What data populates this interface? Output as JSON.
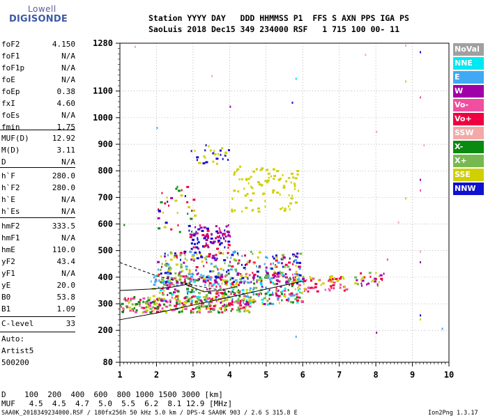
{
  "logo": {
    "top": "Lowell",
    "main": "DIGISONDE"
  },
  "header": {
    "labels": "Station YYYY DAY   DDD HHMMSS P1  FFS S AXN PPS IGA PS",
    "values": "SaoLuis 2018 Dec15 349 234000 RSF   1 715 100 00- 11"
  },
  "params_group1": [
    {
      "label": "foF2",
      "value": "4.150"
    },
    {
      "label": "foF1",
      "value": "N/A"
    },
    {
      "label": "foF1p",
      "value": "N/A"
    },
    {
      "label": "foE",
      "value": "N/A"
    },
    {
      "label": "foEp",
      "value": "0.38"
    },
    {
      "label": "fxI",
      "value": "4.60"
    },
    {
      "label": "foEs",
      "value": "N/A"
    },
    {
      "label": "fmin",
      "value": "1.75"
    }
  ],
  "params_group2": [
    {
      "label": "MUF(D)",
      "value": "12.92"
    },
    {
      "label": "M(D)",
      "value": "3.11"
    },
    {
      "label": "D",
      "value": "N/A"
    }
  ],
  "params_group3": [
    {
      "label": "h`F",
      "value": "280.0"
    },
    {
      "label": "h`F2",
      "value": "280.0"
    },
    {
      "label": "h`E",
      "value": "N/A"
    },
    {
      "label": "h`Es",
      "value": "N/A"
    }
  ],
  "params_group4": [
    {
      "label": "hmF2",
      "value": "333.5"
    },
    {
      "label": "hmF1",
      "value": "N/A"
    },
    {
      "label": "hmE",
      "value": "110.0"
    },
    {
      "label": "yF2",
      "value": "43.4"
    },
    {
      "label": "yF1",
      "value": "N/A"
    },
    {
      "label": "yE",
      "value": "20.0"
    },
    {
      "label": "B0",
      "value": "53.8"
    },
    {
      "label": "B1",
      "value": "1.09"
    }
  ],
  "params_group5": [
    {
      "label": "C-level",
      "value": "33"
    }
  ],
  "autoscaling": {
    "line1": "Auto:",
    "line2": "Artist5",
    "line3": "500200"
  },
  "legend": [
    {
      "label": "NoVal",
      "color": "#a0a0a0"
    },
    {
      "label": "NNE",
      "color": "#00e8f0"
    },
    {
      "label": "E",
      "color": "#3fa9f5"
    },
    {
      "label": "W",
      "color": "#a000a8"
    },
    {
      "label": "Vo-",
      "color": "#f04fa0"
    },
    {
      "label": "Vo+",
      "color": "#f00040"
    },
    {
      "label": "SSW",
      "color": "#f4a8a8"
    },
    {
      "label": "X-",
      "color": "#0a8a10"
    },
    {
      "label": "X+",
      "color": "#78b850"
    },
    {
      "label": "SSE",
      "color": "#d0d000"
    },
    {
      "label": "NNW",
      "color": "#1010d0"
    }
  ],
  "bottom": {
    "d_row": "D    100  200  400  600  800 1000 1500 3000 [km]",
    "muf_row": "MUF   4.5  4.5  4.7  5.0  5.5  6.2  8.1 12.9 [MHz]"
  },
  "footer": {
    "left": "SAA0K_2018349234000.RSF / 180fx256h 50 kHz 5.0 km / DPS-4 SAA0K 903 / 2.6 S 315.8 E",
    "right": "Ion2Png 1.3.17"
  },
  "chart_data": {
    "type": "scatter",
    "xlim": [
      1,
      10
    ],
    "ylim": [
      80,
      1280
    ],
    "x_ticks": [
      "1",
      "2",
      "3",
      "4",
      "5",
      "6",
      "7",
      "8",
      "9",
      "10"
    ],
    "y_ticks": [
      {
        "value": 80,
        "label": "80"
      },
      {
        "value": 200,
        "label": "200"
      },
      {
        "value": 300,
        "label": "300"
      },
      {
        "value": 400,
        "label": "400"
      },
      {
        "value": 500,
        "label": "500"
      },
      {
        "value": 600,
        "label": "600"
      },
      {
        "value": 700,
        "label": "700"
      },
      {
        "value": 800,
        "label": "800"
      },
      {
        "value": 900,
        "label": "900"
      },
      {
        "value": 1000,
        "label": "1000"
      },
      {
        "value": 1100,
        "label": "1100"
      },
      {
        "value": 1280,
        "label": "1280"
      }
    ],
    "grid": true,
    "clusters": [
      {
        "fmin": 1.0,
        "fmax": 4.6,
        "hmin": 270,
        "hmax": 330,
        "n": 260,
        "colors": [
          "#f00040",
          "#f04fa0",
          "#78b850",
          "#d0d000",
          "#0a8a10"
        ]
      },
      {
        "fmin": 1.8,
        "fmax": 6.0,
        "hmin": 300,
        "hmax": 420,
        "n": 420,
        "colors": [
          "#f00040",
          "#f04fa0",
          "#d0d000",
          "#78b850",
          "#0a8a10",
          "#a000a8",
          "#00e8f0",
          "#3fa9f5"
        ]
      },
      {
        "fmin": 2.0,
        "fmax": 6.0,
        "hmin": 380,
        "hmax": 500,
        "n": 280,
        "colors": [
          "#d0d000",
          "#78b850",
          "#f00040",
          "#1010d0",
          "#a000a8",
          "#3fa9f5"
        ]
      },
      {
        "fmin": 6.0,
        "fmax": 7.2,
        "hmin": 350,
        "hmax": 410,
        "n": 60,
        "colors": [
          "#f00040",
          "#f04fa0",
          "#d0d000"
        ]
      },
      {
        "fmin": 7.4,
        "fmax": 8.2,
        "hmin": 370,
        "hmax": 420,
        "n": 30,
        "colors": [
          "#d0d000",
          "#78b850",
          "#f00040",
          "#a000a8"
        ]
      },
      {
        "fmin": 2.9,
        "fmax": 4.0,
        "hmin": 510,
        "hmax": 600,
        "n": 90,
        "colors": [
          "#a000a8",
          "#1010d0",
          "#f00040"
        ]
      },
      {
        "fmin": 4.0,
        "fmax": 5.9,
        "hmin": 650,
        "hmax": 820,
        "n": 90,
        "colors": [
          "#d0d000"
        ]
      },
      {
        "fmin": 2.9,
        "fmax": 4.0,
        "hmin": 830,
        "hmax": 900,
        "n": 30,
        "colors": [
          "#d0d000",
          "#1010d0"
        ]
      },
      {
        "fmin": 2.0,
        "fmax": 3.1,
        "hmin": 560,
        "hmax": 750,
        "n": 40,
        "colors": [
          "#0a8a10",
          "#f00040",
          "#1010d0",
          "#d0d000",
          "#a000a8"
        ]
      }
    ],
    "sparse_points": [
      {
        "x": 1.4,
        "y": 1270,
        "color": "#f4a8a8"
      },
      {
        "x": 5.8,
        "y": 1150,
        "color": "#00e8f0"
      },
      {
        "x": 5.7,
        "y": 1060,
        "color": "#1010d0"
      },
      {
        "x": 4.0,
        "y": 1045,
        "color": "#a000a8"
      },
      {
        "x": 2.0,
        "y": 965,
        "color": "#3fa9f5"
      },
      {
        "x": 3.5,
        "y": 1160,
        "color": "#f4a8a8"
      },
      {
        "x": 8.0,
        "y": 950,
        "color": "#f4a8a8"
      },
      {
        "x": 8.8,
        "y": 1275,
        "color": "#f4a8a8"
      },
      {
        "x": 8.8,
        "y": 1140,
        "color": "#d0d000"
      },
      {
        "x": 9.2,
        "y": 1250,
        "color": "#1010d0"
      },
      {
        "x": 9.2,
        "y": 1080,
        "color": "#f04fa0"
      },
      {
        "x": 9.2,
        "y": 770,
        "color": "#a000a8"
      },
      {
        "x": 9.2,
        "y": 730,
        "color": "#f04fa0"
      },
      {
        "x": 9.2,
        "y": 500,
        "color": "#f4a8a8"
      },
      {
        "x": 9.2,
        "y": 460,
        "color": "#a000a8"
      },
      {
        "x": 9.2,
        "y": 260,
        "color": "#1010d0"
      },
      {
        "x": 9.2,
        "y": 245,
        "color": "#d0d000"
      },
      {
        "x": 9.8,
        "y": 210,
        "color": "#3fa9f5"
      },
      {
        "x": 5.8,
        "y": 180,
        "color": "#3fa9f5"
      },
      {
        "x": 8.0,
        "y": 195,
        "color": "#a000a8"
      },
      {
        "x": 1.1,
        "y": 600,
        "color": "#0a8a10"
      },
      {
        "x": 8.3,
        "y": 470,
        "color": "#f04fa0"
      },
      {
        "x": 8.6,
        "y": 610,
        "color": "#f4a8a8"
      },
      {
        "x": 9.3,
        "y": 900,
        "color": "#f4a8a8"
      },
      {
        "x": 7.7,
        "y": 1240,
        "color": "#f4a8a8"
      },
      {
        "x": 8.8,
        "y": 700,
        "color": "#d0d000"
      }
    ],
    "lines": [
      {
        "style": "solid",
        "points": [
          [
            1,
            240
          ],
          [
            2,
            265
          ],
          [
            3,
            295
          ],
          [
            4,
            325
          ],
          [
            5,
            355
          ],
          [
            6,
            385
          ]
        ]
      },
      {
        "style": "solid",
        "points": [
          [
            1,
            350
          ],
          [
            1.8,
            355
          ],
          [
            2.4,
            362
          ],
          [
            2.8,
            372
          ],
          [
            3.3,
            345
          ],
          [
            3.8,
            352
          ],
          [
            4.2,
            365
          ]
        ]
      },
      {
        "style": "dashed",
        "points": [
          [
            1,
            455
          ],
          [
            2,
            405
          ],
          [
            3,
            370
          ],
          [
            4,
            345
          ],
          [
            4.5,
            335
          ]
        ]
      }
    ]
  }
}
